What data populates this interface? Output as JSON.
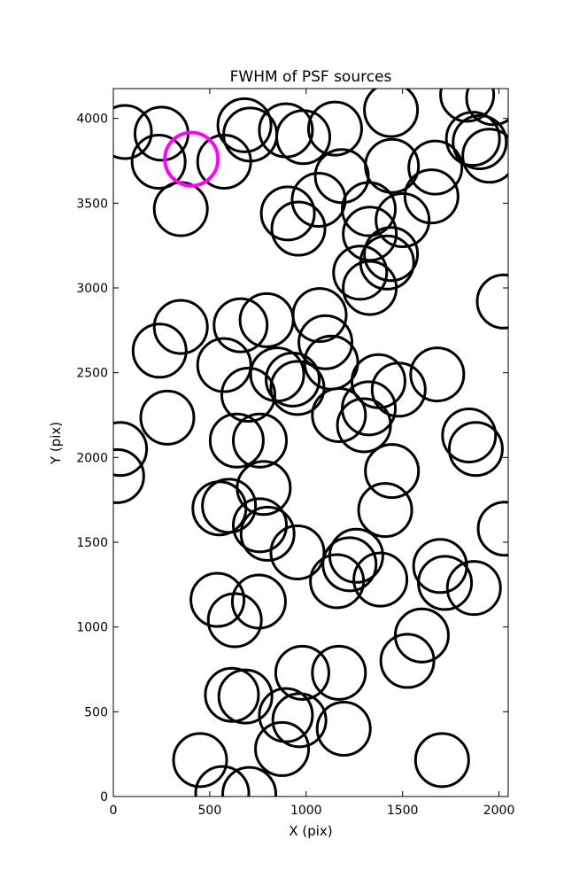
{
  "chart_data": {
    "type": "scatter",
    "title": "FWHM of PSF sources",
    "xlabel": "X (pix)",
    "ylabel": "Y (pix)",
    "xlim": [
      0,
      2048
    ],
    "ylim": [
      0,
      4176
    ],
    "xticks": [
      0,
      500,
      1000,
      1500,
      2000
    ],
    "yticks": [
      0,
      500,
      1000,
      1500,
      2000,
      2500,
      3000,
      3500,
      4000
    ],
    "grid": false,
    "colors": {
      "normal": "#000000",
      "highlight": "#ff00ff"
    },
    "sources": [
      {
        "x": 60,
        "y": 3920
      },
      {
        "x": 250,
        "y": 3910
      },
      {
        "x": 235,
        "y": 3745
      },
      {
        "x": 575,
        "y": 3745
      },
      {
        "x": 680,
        "y": 3960
      },
      {
        "x": 710,
        "y": 3905
      },
      {
        "x": 895,
        "y": 3930
      },
      {
        "x": 985,
        "y": 3890
      },
      {
        "x": 1150,
        "y": 3940
      },
      {
        "x": 1440,
        "y": 4050
      },
      {
        "x": 1835,
        "y": 4140
      },
      {
        "x": 1970,
        "y": 4120
      },
      {
        "x": 1865,
        "y": 3880
      },
      {
        "x": 1900,
        "y": 3860
      },
      {
        "x": 1950,
        "y": 3780
      },
      {
        "x": 1445,
        "y": 3720
      },
      {
        "x": 1670,
        "y": 3710
      },
      {
        "x": 1650,
        "y": 3540
      },
      {
        "x": 1185,
        "y": 3660
      },
      {
        "x": 1065,
        "y": 3520
      },
      {
        "x": 1325,
        "y": 3465
      },
      {
        "x": 1500,
        "y": 3400
      },
      {
        "x": 350,
        "y": 3465
      },
      {
        "x": 905,
        "y": 3440
      },
      {
        "x": 960,
        "y": 3350
      },
      {
        "x": 1330,
        "y": 3320
      },
      {
        "x": 1440,
        "y": 3200
      },
      {
        "x": 1420,
        "y": 3150
      },
      {
        "x": 1280,
        "y": 3090
      },
      {
        "x": 1330,
        "y": 3000
      },
      {
        "x": 2025,
        "y": 2920
      },
      {
        "x": 350,
        "y": 2770
      },
      {
        "x": 660,
        "y": 2780
      },
      {
        "x": 795,
        "y": 2810
      },
      {
        "x": 1070,
        "y": 2840
      },
      {
        "x": 1100,
        "y": 2680
      },
      {
        "x": 240,
        "y": 2630
      },
      {
        "x": 575,
        "y": 2545
      },
      {
        "x": 1130,
        "y": 2560
      },
      {
        "x": 850,
        "y": 2490
      },
      {
        "x": 930,
        "y": 2460
      },
      {
        "x": 955,
        "y": 2410
      },
      {
        "x": 1375,
        "y": 2450
      },
      {
        "x": 1480,
        "y": 2400
      },
      {
        "x": 1680,
        "y": 2490
      },
      {
        "x": 700,
        "y": 2370
      },
      {
        "x": 1170,
        "y": 2250
      },
      {
        "x": 1325,
        "y": 2290
      },
      {
        "x": 1300,
        "y": 2190
      },
      {
        "x": 280,
        "y": 2235
      },
      {
        "x": 640,
        "y": 2100
      },
      {
        "x": 760,
        "y": 2100
      },
      {
        "x": 35,
        "y": 2050
      },
      {
        "x": 20,
        "y": 1890
      },
      {
        "x": 1845,
        "y": 2130
      },
      {
        "x": 1880,
        "y": 2050
      },
      {
        "x": 1445,
        "y": 1920
      },
      {
        "x": 780,
        "y": 1820
      },
      {
        "x": 550,
        "y": 1700
      },
      {
        "x": 600,
        "y": 1715
      },
      {
        "x": 1410,
        "y": 1690
      },
      {
        "x": 760,
        "y": 1600
      },
      {
        "x": 800,
        "y": 1550
      },
      {
        "x": 955,
        "y": 1440
      },
      {
        "x": 2030,
        "y": 1580
      },
      {
        "x": 1260,
        "y": 1420
      },
      {
        "x": 1225,
        "y": 1370
      },
      {
        "x": 1695,
        "y": 1360
      },
      {
        "x": 1720,
        "y": 1260
      },
      {
        "x": 1160,
        "y": 1270
      },
      {
        "x": 1385,
        "y": 1280
      },
      {
        "x": 1870,
        "y": 1230
      },
      {
        "x": 540,
        "y": 1160
      },
      {
        "x": 755,
        "y": 1150
      },
      {
        "x": 630,
        "y": 1040
      },
      {
        "x": 1600,
        "y": 950
      },
      {
        "x": 1525,
        "y": 800
      },
      {
        "x": 980,
        "y": 730
      },
      {
        "x": 1170,
        "y": 730
      },
      {
        "x": 615,
        "y": 600
      },
      {
        "x": 685,
        "y": 590
      },
      {
        "x": 895,
        "y": 480
      },
      {
        "x": 965,
        "y": 450
      },
      {
        "x": 1195,
        "y": 400
      },
      {
        "x": 875,
        "y": 280
      },
      {
        "x": 450,
        "y": 215
      },
      {
        "x": 1705,
        "y": 215
      },
      {
        "x": 565,
        "y": 20
      },
      {
        "x": 705,
        "y": 15
      }
    ],
    "highlighted_source": {
      "x": 405,
      "y": 3760
    }
  }
}
